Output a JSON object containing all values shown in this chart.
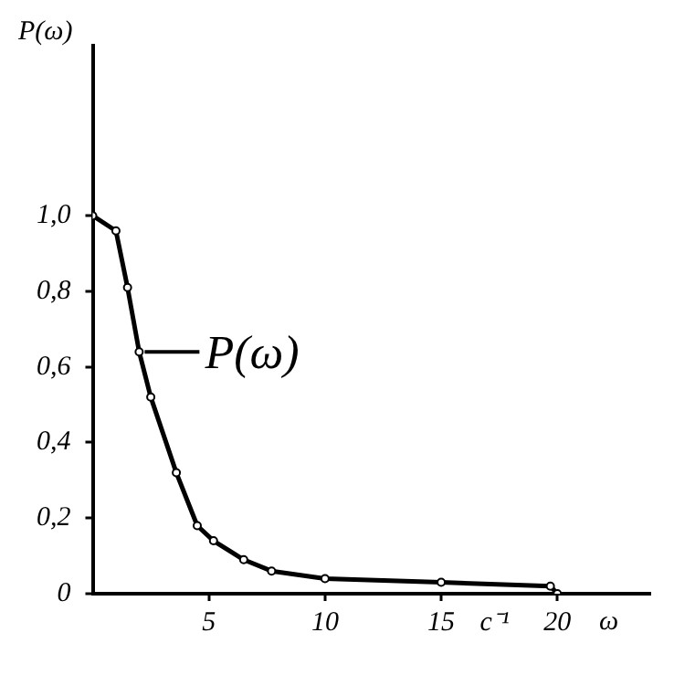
{
  "chart_data": {
    "type": "line",
    "xlabel": "ω",
    "ylabel": "P(ω)",
    "xlim": [
      0,
      24
    ],
    "ylim": [
      0,
      1.45
    ],
    "xticks": [
      5,
      10,
      15,
      {
        "value": 17.3,
        "label": "c⁻¹"
      },
      20
    ],
    "yticks": [
      {
        "value": 0,
        "label": "0"
      },
      {
        "value": 0.2,
        "label": "0,2"
      },
      {
        "value": 0.4,
        "label": "0,4"
      },
      {
        "value": 0.6,
        "label": "0,6"
      },
      {
        "value": 0.8,
        "label": "0,8"
      },
      {
        "value": 1,
        "label": "1,0"
      }
    ],
    "series": [
      {
        "name": "P(ω)",
        "color": "#000000",
        "x": [
          0,
          1,
          1.5,
          2,
          2.5,
          3.6,
          4.5,
          5.2,
          6.5,
          7.7,
          10,
          15,
          19.7,
          20
        ],
        "values": [
          1,
          0.96,
          0.81,
          0.64,
          0.52,
          0.32,
          0.18,
          0.14,
          0.09,
          0.06,
          0.04,
          0.03,
          0.02,
          0
        ]
      }
    ],
    "grid": false,
    "legend": "left",
    "marker": "circle",
    "line_style": "solid"
  }
}
